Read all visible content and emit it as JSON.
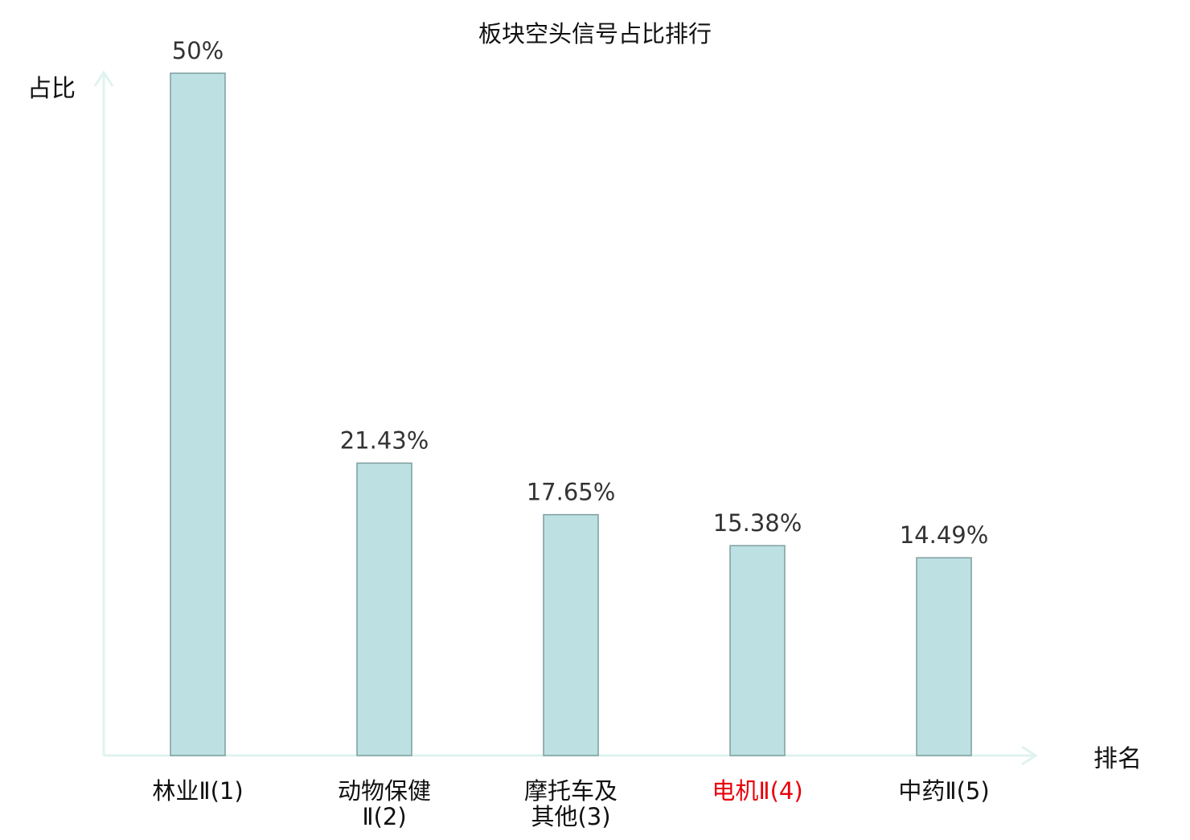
{
  "chart_data": {
    "type": "bar",
    "title": "板块空头信号占比排行",
    "ylabel": "占比",
    "xlabel": "排名",
    "ylim": [
      0,
      50
    ],
    "grid": false,
    "legend": "none",
    "categories": [
      [
        "林业Ⅱ(1)"
      ],
      [
        "动物保健",
        "Ⅱ(2)"
      ],
      [
        "摩托车及",
        "其他(3)"
      ],
      [
        "电机Ⅱ(4)"
      ],
      [
        "中药Ⅱ(5)"
      ]
    ],
    "values": [
      50,
      21.43,
      17.65,
      15.38,
      14.49
    ],
    "value_labels": [
      "50%",
      "21.43%",
      "17.65%",
      "15.38%",
      "14.49%"
    ],
    "highlight_index": 3,
    "colors": {
      "bar_fill": "#bde0e2",
      "bar_stroke": "#7f9ea0",
      "axis": "#dff3ef",
      "text": "#333333",
      "label_text": "#111111",
      "highlight_text": "#e8000b"
    }
  }
}
